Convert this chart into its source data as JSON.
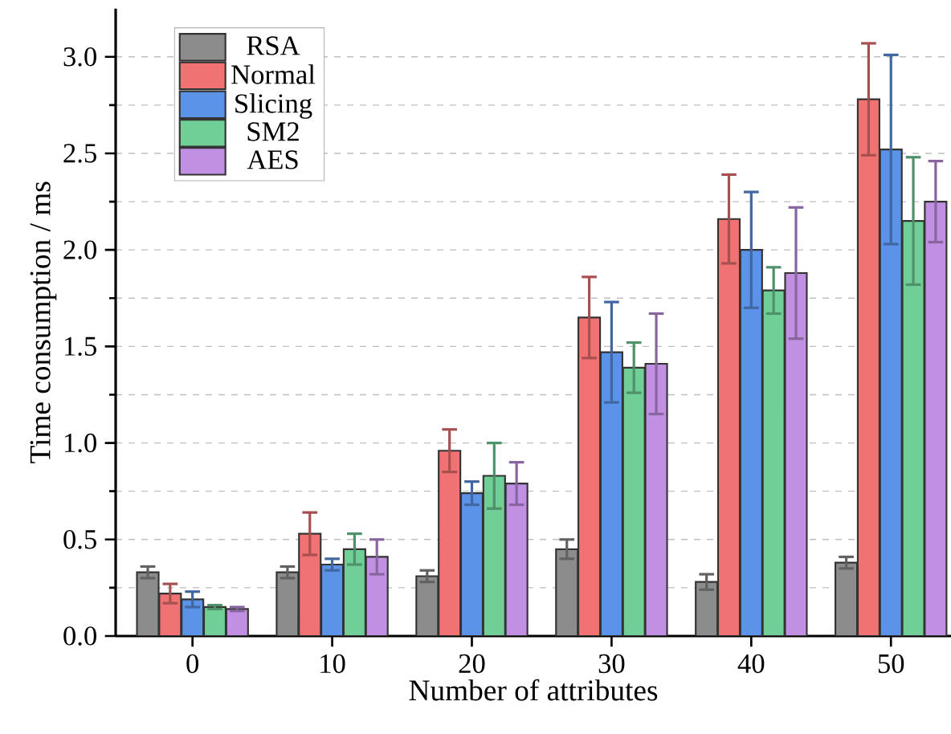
{
  "chart_data": {
    "type": "bar",
    "xlabel": "Number of attributes",
    "ylabel": "Time consumption / ms",
    "categories": [
      "0",
      "10",
      "20",
      "30",
      "40",
      "50"
    ],
    "series": [
      {
        "name": "RSA",
        "color": "#8c8c8c",
        "values": [
          0.33,
          0.33,
          0.31,
          0.45,
          0.28,
          0.38
        ],
        "errors": [
          0.03,
          0.03,
          0.03,
          0.05,
          0.04,
          0.03
        ]
      },
      {
        "name": "Normal",
        "color": "#f07272",
        "values": [
          0.22,
          0.53,
          0.96,
          1.65,
          2.16,
          2.78
        ],
        "errors": [
          0.05,
          0.11,
          0.11,
          0.21,
          0.23,
          0.29
        ]
      },
      {
        "name": "Slicing",
        "color": "#5b93e8",
        "values": [
          0.19,
          0.37,
          0.74,
          1.47,
          2.0,
          2.52
        ],
        "errors": [
          0.04,
          0.03,
          0.06,
          0.26,
          0.3,
          0.49
        ]
      },
      {
        "name": "SM2",
        "color": "#6fcf97",
        "values": [
          0.15,
          0.45,
          0.83,
          1.39,
          1.79,
          2.15
        ],
        "errors": [
          0.01,
          0.08,
          0.17,
          0.13,
          0.12,
          0.33
        ]
      },
      {
        "name": "AES",
        "color": "#c290e3",
        "values": [
          0.14,
          0.41,
          0.79,
          1.41,
          1.88,
          2.25
        ],
        "errors": [
          0.01,
          0.09,
          0.11,
          0.26,
          0.34,
          0.21
        ]
      }
    ],
    "ylim": [
      0,
      3.25
    ],
    "yticks": [
      {
        "value": 0,
        "label": "0.0"
      },
      {
        "value": 0.5,
        "label": "0.5"
      },
      {
        "value": 1,
        "label": "1.0"
      },
      {
        "value": 1.5,
        "label": "1.5"
      },
      {
        "value": 2,
        "label": "2.0"
      },
      {
        "value": 2.5,
        "label": "2.5"
      },
      {
        "value": 3,
        "label": "3.0"
      }
    ],
    "grid": "y",
    "legend": "top left"
  }
}
